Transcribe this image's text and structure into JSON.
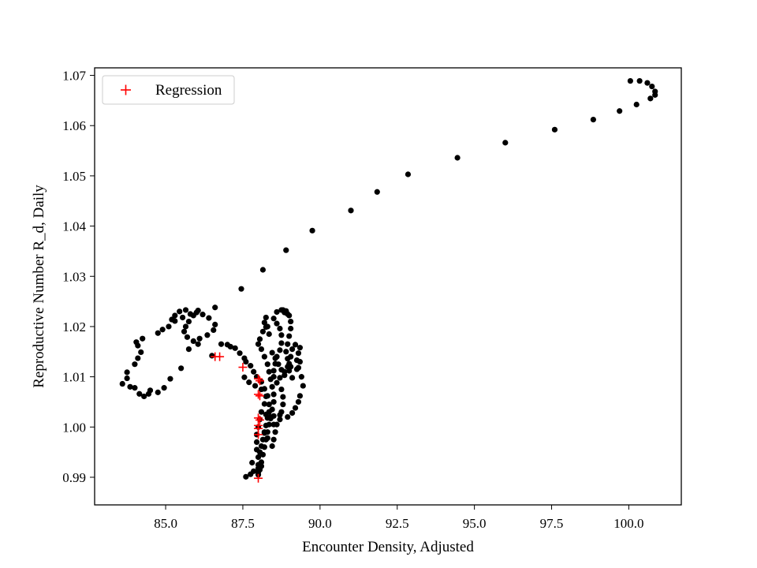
{
  "chart_data": {
    "type": "scatter",
    "title": "",
    "xlabel": "Encounter Density, Adjusted",
    "ylabel": "Reproductive Number R_d, Daily",
    "xlim": [
      82.7,
      101.7
    ],
    "ylim": [
      0.9845,
      1.0715
    ],
    "xticks": [
      85.0,
      87.5,
      90.0,
      92.5,
      95.0,
      97.5,
      100.0
    ],
    "xtick_labels": [
      "85.0",
      "87.5",
      "90.0",
      "92.5",
      "95.0",
      "97.5",
      "100.0"
    ],
    "yticks": [
      0.99,
      1.0,
      1.01,
      1.02,
      1.03,
      1.04,
      1.05,
      1.06,
      1.07
    ],
    "ytick_labels": [
      "0.99",
      "1.00",
      "1.01",
      "1.02",
      "1.03",
      "1.04",
      "1.05",
      "1.06",
      "1.07"
    ],
    "grid": false,
    "legend_position": "upper-left",
    "colors": {
      "data": "#000000",
      "regression": "#ff0000",
      "axes": "#000000"
    },
    "series": [
      {
        "marker": "dot",
        "points": [
          [
            86.6,
            1.0238
          ],
          [
            87.45,
            1.0275
          ],
          [
            88.15,
            1.0313
          ],
          [
            88.9,
            1.0352
          ],
          [
            89.75,
            1.0391
          ],
          [
            91.0,
            1.0431
          ],
          [
            91.85,
            1.0468
          ],
          [
            92.85,
            1.0503
          ],
          [
            94.45,
            1.0536
          ],
          [
            96.0,
            1.0566
          ],
          [
            97.6,
            1.0592
          ],
          [
            98.85,
            1.0612
          ],
          [
            99.7,
            1.0629
          ],
          [
            100.25,
            1.0642
          ],
          [
            100.7,
            1.0654
          ],
          [
            100.85,
            1.0661
          ],
          [
            100.85,
            1.0668
          ],
          [
            100.75,
            1.0678
          ],
          [
            100.6,
            1.0685
          ],
          [
            100.35,
            1.0689
          ],
          [
            100.05,
            1.0689
          ],
          [
            83.6,
            1.0086
          ],
          [
            83.75,
            1.0097
          ],
          [
            83.75,
            1.0109
          ],
          [
            84.0,
            1.0125
          ],
          [
            84.1,
            1.0137
          ],
          [
            84.2,
            1.0149
          ],
          [
            84.1,
            1.0162
          ],
          [
            84.05,
            1.0169
          ],
          [
            84.25,
            1.0176
          ],
          [
            83.85,
            1.008
          ],
          [
            84.0,
            1.0078
          ],
          [
            84.15,
            1.0066
          ],
          [
            84.3,
            1.0061
          ],
          [
            84.45,
            1.0066
          ],
          [
            84.5,
            1.0073
          ],
          [
            84.75,
            1.0069
          ],
          [
            84.95,
            1.0078
          ],
          [
            85.15,
            1.0096
          ],
          [
            85.5,
            1.0117
          ],
          [
            85.75,
            1.0155
          ],
          [
            86.05,
            1.0165
          ],
          [
            86.5,
            1.0142
          ],
          [
            86.8,
            1.0165
          ],
          [
            87.0,
            1.0164
          ],
          [
            87.1,
            1.016
          ],
          [
            87.25,
            1.0157
          ],
          [
            87.4,
            1.0147
          ],
          [
            87.55,
            1.0137
          ],
          [
            84.75,
            1.0187
          ],
          [
            84.9,
            1.0194
          ],
          [
            85.1,
            1.02
          ],
          [
            85.3,
            1.0211
          ],
          [
            85.55,
            1.0218
          ],
          [
            85.8,
            1.0225
          ],
          [
            86.05,
            1.0232
          ],
          [
            86.2,
            1.0224
          ],
          [
            86.4,
            1.0217
          ],
          [
            86.6,
            1.0204
          ],
          [
            86.55,
            1.0193
          ],
          [
            86.35,
            1.0183
          ],
          [
            86.1,
            1.0176
          ],
          [
            85.9,
            1.0171
          ],
          [
            85.7,
            1.0179
          ],
          [
            85.6,
            1.019
          ],
          [
            85.65,
            1.02
          ],
          [
            85.75,
            1.021
          ],
          [
            85.9,
            1.0222
          ],
          [
            86.0,
            1.0228
          ],
          [
            85.45,
            1.023
          ],
          [
            85.3,
            1.0222
          ],
          [
            85.2,
            1.0214
          ],
          [
            85.65,
            1.0233
          ],
          [
            87.6,
            1.013
          ],
          [
            87.75,
            1.0122
          ],
          [
            87.85,
            1.011
          ],
          [
            87.95,
            1.01
          ],
          [
            88.1,
            1.009
          ],
          [
            88.2,
            1.0076
          ],
          [
            88.25,
            1.0061
          ],
          [
            88.2,
            1.0046
          ],
          [
            88.1,
            1.003
          ],
          [
            88.05,
            1.0015
          ],
          [
            88.0,
            1.0
          ],
          [
            87.95,
            0.9985
          ],
          [
            87.95,
            0.997
          ],
          [
            87.95,
            0.9955
          ],
          [
            88.0,
            0.994
          ],
          [
            88.0,
            0.9925
          ],
          [
            88.0,
            0.991
          ],
          [
            87.6,
            0.9901
          ],
          [
            87.75,
            0.9906
          ],
          [
            87.85,
            0.9912
          ],
          [
            88.0,
            0.9918
          ],
          [
            88.1,
            0.9922
          ],
          [
            87.8,
            0.9929
          ],
          [
            87.55,
            1.0099
          ],
          [
            87.7,
            1.0089
          ],
          [
            87.9,
            1.0082
          ],
          [
            88.1,
            1.0075
          ],
          [
            88.3,
            1.0062
          ],
          [
            88.35,
            1.0045
          ],
          [
            88.35,
            1.003
          ],
          [
            88.3,
            1.0018
          ],
          [
            88.25,
            1.0003
          ],
          [
            88.2,
            0.9988
          ],
          [
            88.15,
            0.9975
          ],
          [
            88.1,
            0.9962
          ],
          [
            88.05,
            0.995
          ],
          [
            88.2,
            0.999
          ],
          [
            88.3,
            0.9978
          ],
          [
            88.45,
            0.9962
          ],
          [
            88.5,
            0.9975
          ],
          [
            88.55,
            0.999
          ],
          [
            88.5,
            1.0005
          ],
          [
            88.4,
            1.0017
          ],
          [
            88.25,
            1.0025
          ],
          [
            88.5,
            1.0022
          ],
          [
            88.7,
            1.0024
          ],
          [
            88.95,
            1.002
          ],
          [
            89.1,
            1.0028
          ],
          [
            89.2,
            1.0038
          ],
          [
            89.3,
            1.005
          ],
          [
            89.35,
            1.0062
          ],
          [
            89.45,
            1.0082
          ],
          [
            89.4,
            1.01
          ],
          [
            89.3,
            1.0118
          ],
          [
            89.25,
            1.0133
          ],
          [
            89.3,
            1.0147
          ],
          [
            89.35,
            1.0158
          ],
          [
            89.2,
            1.0164
          ],
          [
            89.1,
            1.0155
          ],
          [
            89.05,
            1.014
          ],
          [
            89.0,
            1.0126
          ],
          [
            89.0,
            1.0112
          ],
          [
            89.1,
            1.0098
          ],
          [
            89.05,
            1.012
          ],
          [
            88.95,
            1.0136
          ],
          [
            88.9,
            1.015
          ],
          [
            88.95,
            1.0165
          ],
          [
            89.0,
            1.0181
          ],
          [
            89.05,
            1.0196
          ],
          [
            89.05,
            1.021
          ],
          [
            89.0,
            1.0222
          ],
          [
            88.9,
            1.0231
          ],
          [
            88.75,
            1.0233
          ],
          [
            88.6,
            1.0229
          ],
          [
            88.5,
            1.0216
          ],
          [
            88.6,
            1.0206
          ],
          [
            88.7,
            1.0196
          ],
          [
            88.75,
            1.0183
          ],
          [
            88.75,
            1.0167
          ],
          [
            88.7,
            1.0153
          ],
          [
            88.6,
            1.014
          ],
          [
            88.55,
            1.0126
          ],
          [
            88.5,
            1.0112
          ],
          [
            88.5,
            1.01
          ],
          [
            88.6,
            1.0088
          ],
          [
            88.75,
            1.0075
          ],
          [
            88.8,
            1.006
          ],
          [
            88.8,
            1.0045
          ],
          [
            88.75,
            1.003
          ],
          [
            88.7,
            1.0015
          ],
          [
            88.6,
            1.0005
          ],
          [
            88.7,
            1.0098
          ],
          [
            88.85,
            1.011
          ],
          [
            88.95,
            1.012
          ],
          [
            88.45,
            1.0148
          ],
          [
            88.55,
            1.0137
          ],
          [
            88.65,
            1.0125
          ],
          [
            88.75,
            1.0114
          ],
          [
            88.85,
            1.0103
          ],
          [
            88.15,
            1.019
          ],
          [
            88.25,
            1.0199
          ],
          [
            88.2,
            1.0208
          ],
          [
            88.25,
            1.0218
          ],
          [
            88.05,
            1.0175
          ],
          [
            88.0,
            1.0165
          ],
          [
            88.1,
            1.0155
          ],
          [
            88.2,
            1.014
          ],
          [
            88.3,
            1.0125
          ],
          [
            88.35,
            1.011
          ],
          [
            88.4,
            1.0095
          ],
          [
            88.45,
            1.008
          ],
          [
            88.5,
            1.0065
          ],
          [
            88.5,
            1.005
          ],
          [
            88.45,
            1.0035
          ],
          [
            88.4,
            1.002
          ],
          [
            88.35,
            1.0005
          ],
          [
            88.3,
            0.999
          ],
          [
            88.25,
            0.9975
          ],
          [
            88.2,
            0.996
          ],
          [
            88.15,
            0.9945
          ],
          [
            88.1,
            0.993
          ],
          [
            88.05,
            0.9915
          ],
          [
            88.0,
            0.9905
          ],
          [
            88.8,
            1.0233
          ],
          [
            88.85,
            1.0228
          ],
          [
            88.95,
            1.0225
          ],
          [
            88.3,
            1.02
          ],
          [
            88.35,
            1.0185
          ],
          [
            89.35,
            1.013
          ],
          [
            89.25,
            1.0115
          ]
        ]
      },
      {
        "name": "Regression",
        "marker": "plus",
        "points": [
          [
            86.6,
            1.014
          ],
          [
            86.75,
            1.014
          ],
          [
            87.5,
            1.0119
          ],
          [
            88.0,
            1.0096
          ],
          [
            88.05,
            1.0092
          ],
          [
            88.0,
            1.0065
          ],
          [
            88.05,
            1.0062
          ],
          [
            88.0,
            1.0018
          ],
          [
            88.05,
            1.0014
          ],
          [
            88.0,
            1.0003
          ],
          [
            88.0,
            0.9997
          ],
          [
            88.0,
            0.9985
          ],
          [
            88.0,
            0.9898
          ]
        ]
      }
    ]
  }
}
